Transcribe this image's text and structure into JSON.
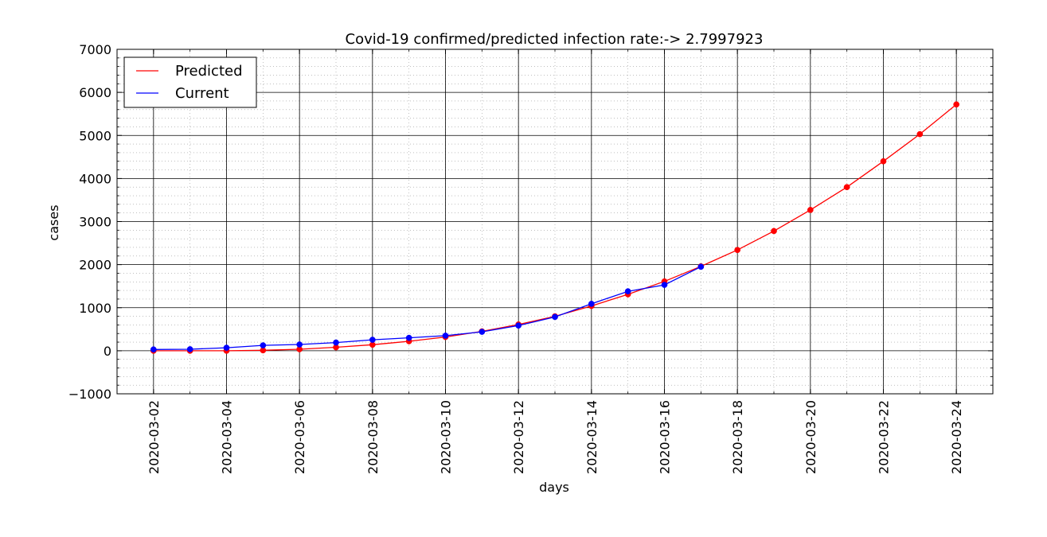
{
  "chart_data": {
    "type": "line",
    "title": "Covid-19 confirmed/predicted infection rate:-> 2.7997923",
    "xlabel": "days",
    "ylabel": "cases",
    "ylim": [
      -1000,
      7000
    ],
    "yticks": [
      "−1000",
      "0",
      "1000",
      "2000",
      "3000",
      "4000",
      "5000",
      "6000",
      "7000"
    ],
    "xlim": [
      "2020-03-01",
      "2020-03-25"
    ],
    "xticks": [
      "2020-03-02",
      "2020-03-04",
      "2020-03-06",
      "2020-03-08",
      "2020-03-10",
      "2020-03-12",
      "2020-03-14",
      "2020-03-16",
      "2020-03-18",
      "2020-03-20",
      "2020-03-22",
      "2020-03-24"
    ],
    "grid": "on (major solid, minor dotted)",
    "legend_position": "top-left",
    "series": [
      {
        "name": "Predicted",
        "color": "#ff0000",
        "x": [
          "2020-03-02",
          "2020-03-03",
          "2020-03-04",
          "2020-03-05",
          "2020-03-06",
          "2020-03-07",
          "2020-03-08",
          "2020-03-09",
          "2020-03-10",
          "2020-03-11",
          "2020-03-12",
          "2020-03-13",
          "2020-03-14",
          "2020-03-15",
          "2020-03-16",
          "2020-03-17",
          "2020-03-18",
          "2020-03-19",
          "2020-03-20",
          "2020-03-21",
          "2020-03-22",
          "2020-03-23",
          "2020-03-24"
        ],
        "values": [
          0,
          0,
          0,
          10,
          35,
          80,
          140,
          220,
          320,
          450,
          610,
          800,
          1040,
          1310,
          1610,
          1960,
          2340,
          2780,
          3270,
          3800,
          4400,
          5030,
          5720
        ]
      },
      {
        "name": "Current",
        "color": "#0000ff",
        "x": [
          "2020-03-02",
          "2020-03-03",
          "2020-03-04",
          "2020-03-05",
          "2020-03-06",
          "2020-03-07",
          "2020-03-08",
          "2020-03-09",
          "2020-03-10",
          "2020-03-11",
          "2020-03-12",
          "2020-03-13",
          "2020-03-14",
          "2020-03-15",
          "2020-03-16",
          "2020-03-17"
        ],
        "values": [
          30,
          35,
          70,
          125,
          145,
          190,
          255,
          300,
          350,
          440,
          585,
          785,
          1090,
          1380,
          1530,
          1950
        ]
      }
    ]
  }
}
